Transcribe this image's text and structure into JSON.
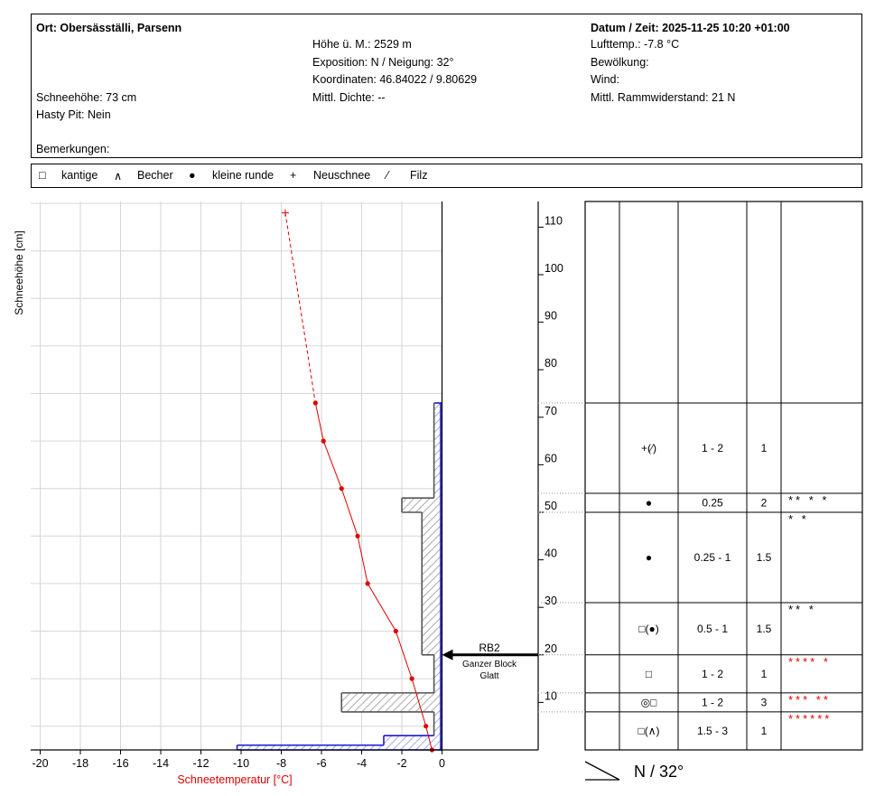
{
  "header": {
    "location": "Ort: Obersäsställi, Parsenn",
    "elevation": "Höhe ü. M.: 2529 m",
    "exposition": "Exposition: N / Neigung: 32°",
    "coordinates": "Koordinaten: 46.84022 / 9.80629",
    "density": "Mittl. Dichte: --",
    "snow_depth": "Schneehöhe: 73 cm",
    "hasty_pit": "Hasty Pit: Nein",
    "remarks": "Bemerkungen:",
    "datetime": "Datum / Zeit: 2025-11-25 10:20 +01:00",
    "air_temp": "Lufttemp.: -7.8 °C",
    "clouds": "Bewölkung:",
    "wind": "Wind:",
    "ram": "Mittl. Rammwiderstand: 21 N"
  },
  "legend": [
    {
      "symbol": "□",
      "label": "kantige"
    },
    {
      "symbol": "∧",
      "label": "Becher"
    },
    {
      "symbol": "●",
      "label": "kleine runde"
    },
    {
      "symbol": "+",
      "label": "Neuschnee"
    },
    {
      "symbol": "⁄",
      "label": "Filz"
    }
  ],
  "chart_data": {
    "type": "snow-profile",
    "xlabel": "Schneetemperatur [°C]",
    "ylabel": "Schneehöhe [cm]",
    "xlim": [
      -20,
      0
    ],
    "ylim": [
      0,
      115
    ],
    "x_ticks": [
      -20,
      -18,
      -16,
      -14,
      -12,
      -10,
      -8,
      -6,
      -4,
      -2,
      0
    ],
    "y_ticks": [
      10,
      20,
      30,
      40,
      50,
      60,
      70,
      80,
      90,
      100,
      110
    ],
    "air_temperature": {
      "height": 113,
      "value": -7.8
    },
    "temperature_profile": [
      {
        "height": 73,
        "value": -6.3
      },
      {
        "height": 65,
        "value": -5.9
      },
      {
        "height": 55,
        "value": -5.0
      },
      {
        "height": 45,
        "value": -4.2
      },
      {
        "height": 35,
        "value": -3.7
      },
      {
        "height": 25,
        "value": -2.3
      },
      {
        "height": 15,
        "value": -1.5
      },
      {
        "height": 5,
        "value": -0.8
      },
      {
        "height": 0,
        "value": -0.5
      }
    ],
    "hardness_profile": [
      {
        "top": 73,
        "bottom": 53,
        "hardness": -0.4
      },
      {
        "top": 53,
        "bottom": 50,
        "hardness": -2.0
      },
      {
        "top": 50,
        "bottom": 20,
        "hardness": -1.0
      },
      {
        "top": 20,
        "bottom": 12,
        "hardness": -0.4
      },
      {
        "top": 12,
        "bottom": 8,
        "hardness": -5.0
      },
      {
        "top": 8,
        "bottom": 3,
        "hardness": -0.4
      },
      {
        "top": 3,
        "bottom": 1,
        "hardness": -2.9
      },
      {
        "top": 1,
        "bottom": 0,
        "hardness": -10.2
      }
    ],
    "stability_test": {
      "height": 20,
      "lines": [
        "RB2",
        "Ganzer Block",
        "Glatt"
      ]
    },
    "layers": [
      {
        "top": 73,
        "bottom": 54,
        "grain": "+(⁄)",
        "size": "1 - 2",
        "hardness": "1",
        "marks": "",
        "red": false
      },
      {
        "top": 54,
        "bottom": 50,
        "grain": "●",
        "size": "0.25",
        "hardness": "2",
        "marks": "** * *",
        "red": false
      },
      {
        "top": 50,
        "bottom": 31,
        "grain": "●",
        "size": "0.25 - 1",
        "hardness": "1.5",
        "marks": "* *",
        "red": false
      },
      {
        "top": 31,
        "bottom": 20,
        "grain": "□(●)",
        "size": "0.5 - 1",
        "hardness": "1.5",
        "marks": "** *",
        "red": false
      },
      {
        "top": 20,
        "bottom": 12,
        "grain": "□",
        "size": "1 - 2",
        "hardness": "1",
        "marks": "**** *",
        "red": true
      },
      {
        "top": 12,
        "bottom": 8,
        "grain": "◎□",
        "size": "1 - 2",
        "hardness": "3",
        "marks": "*** **",
        "red": true
      },
      {
        "top": 8,
        "bottom": 0,
        "grain": "□(∧)",
        "size": "1.5 - 3",
        "hardness": "1",
        "marks": "******",
        "red": true
      }
    ],
    "aspect_label": "N / 32°"
  }
}
